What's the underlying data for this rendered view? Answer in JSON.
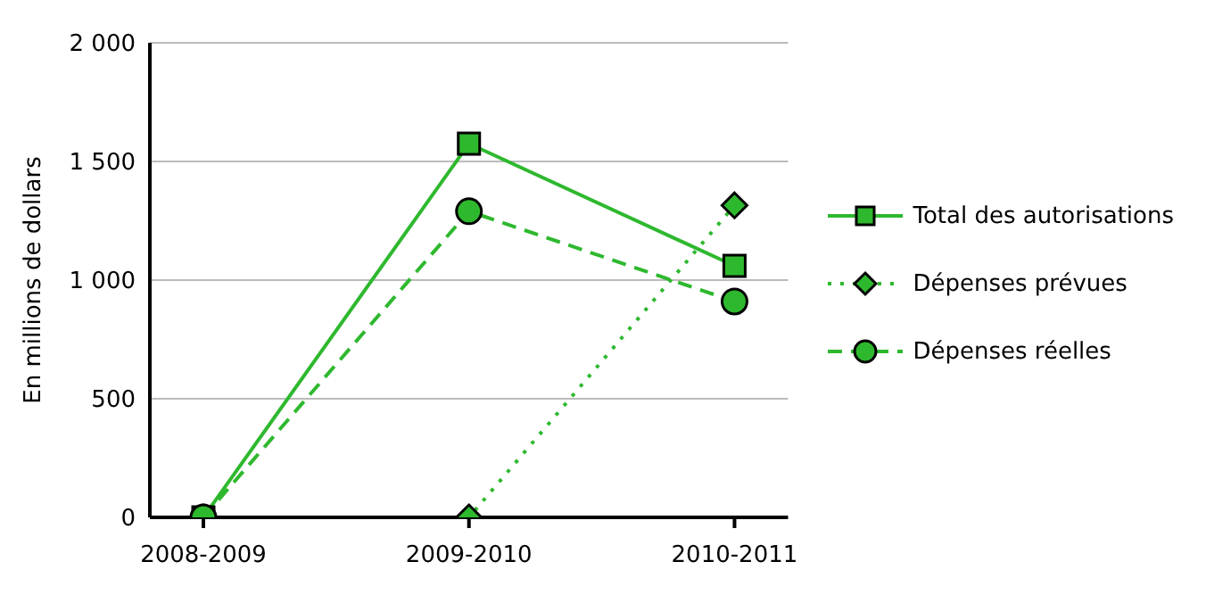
{
  "chart_data": {
    "type": "line",
    "ylabel": "En millions de dollars",
    "categories": [
      "2008-2009",
      "2009-2010",
      "2010-2011"
    ],
    "series": [
      {
        "name": "Total des autorisations",
        "color": "#2eb82e",
        "values": [
          0,
          1575,
          1060
        ],
        "marker": "square",
        "line_style": "solid"
      },
      {
        "name": "Dépenses prévues",
        "color": "#2eb82e",
        "values": [
          0,
          0,
          1315
        ],
        "marker": "diamond",
        "line_style": "dotted"
      },
      {
        "name": "Dépenses réelles",
        "color": "#2eb82e",
        "values": [
          0,
          1290,
          910
        ],
        "marker": "circle",
        "line_style": "dashed"
      }
    ],
    "ylim": [
      0,
      2000
    ],
    "yticks": [
      0,
      500,
      {
        "value": 1000,
        "label": "1 000"
      },
      {
        "value": 1500,
        "label": "1 500"
      },
      {
        "value": 2000,
        "label": "2 000"
      }
    ],
    "grid": "y",
    "legend": "right"
  }
}
